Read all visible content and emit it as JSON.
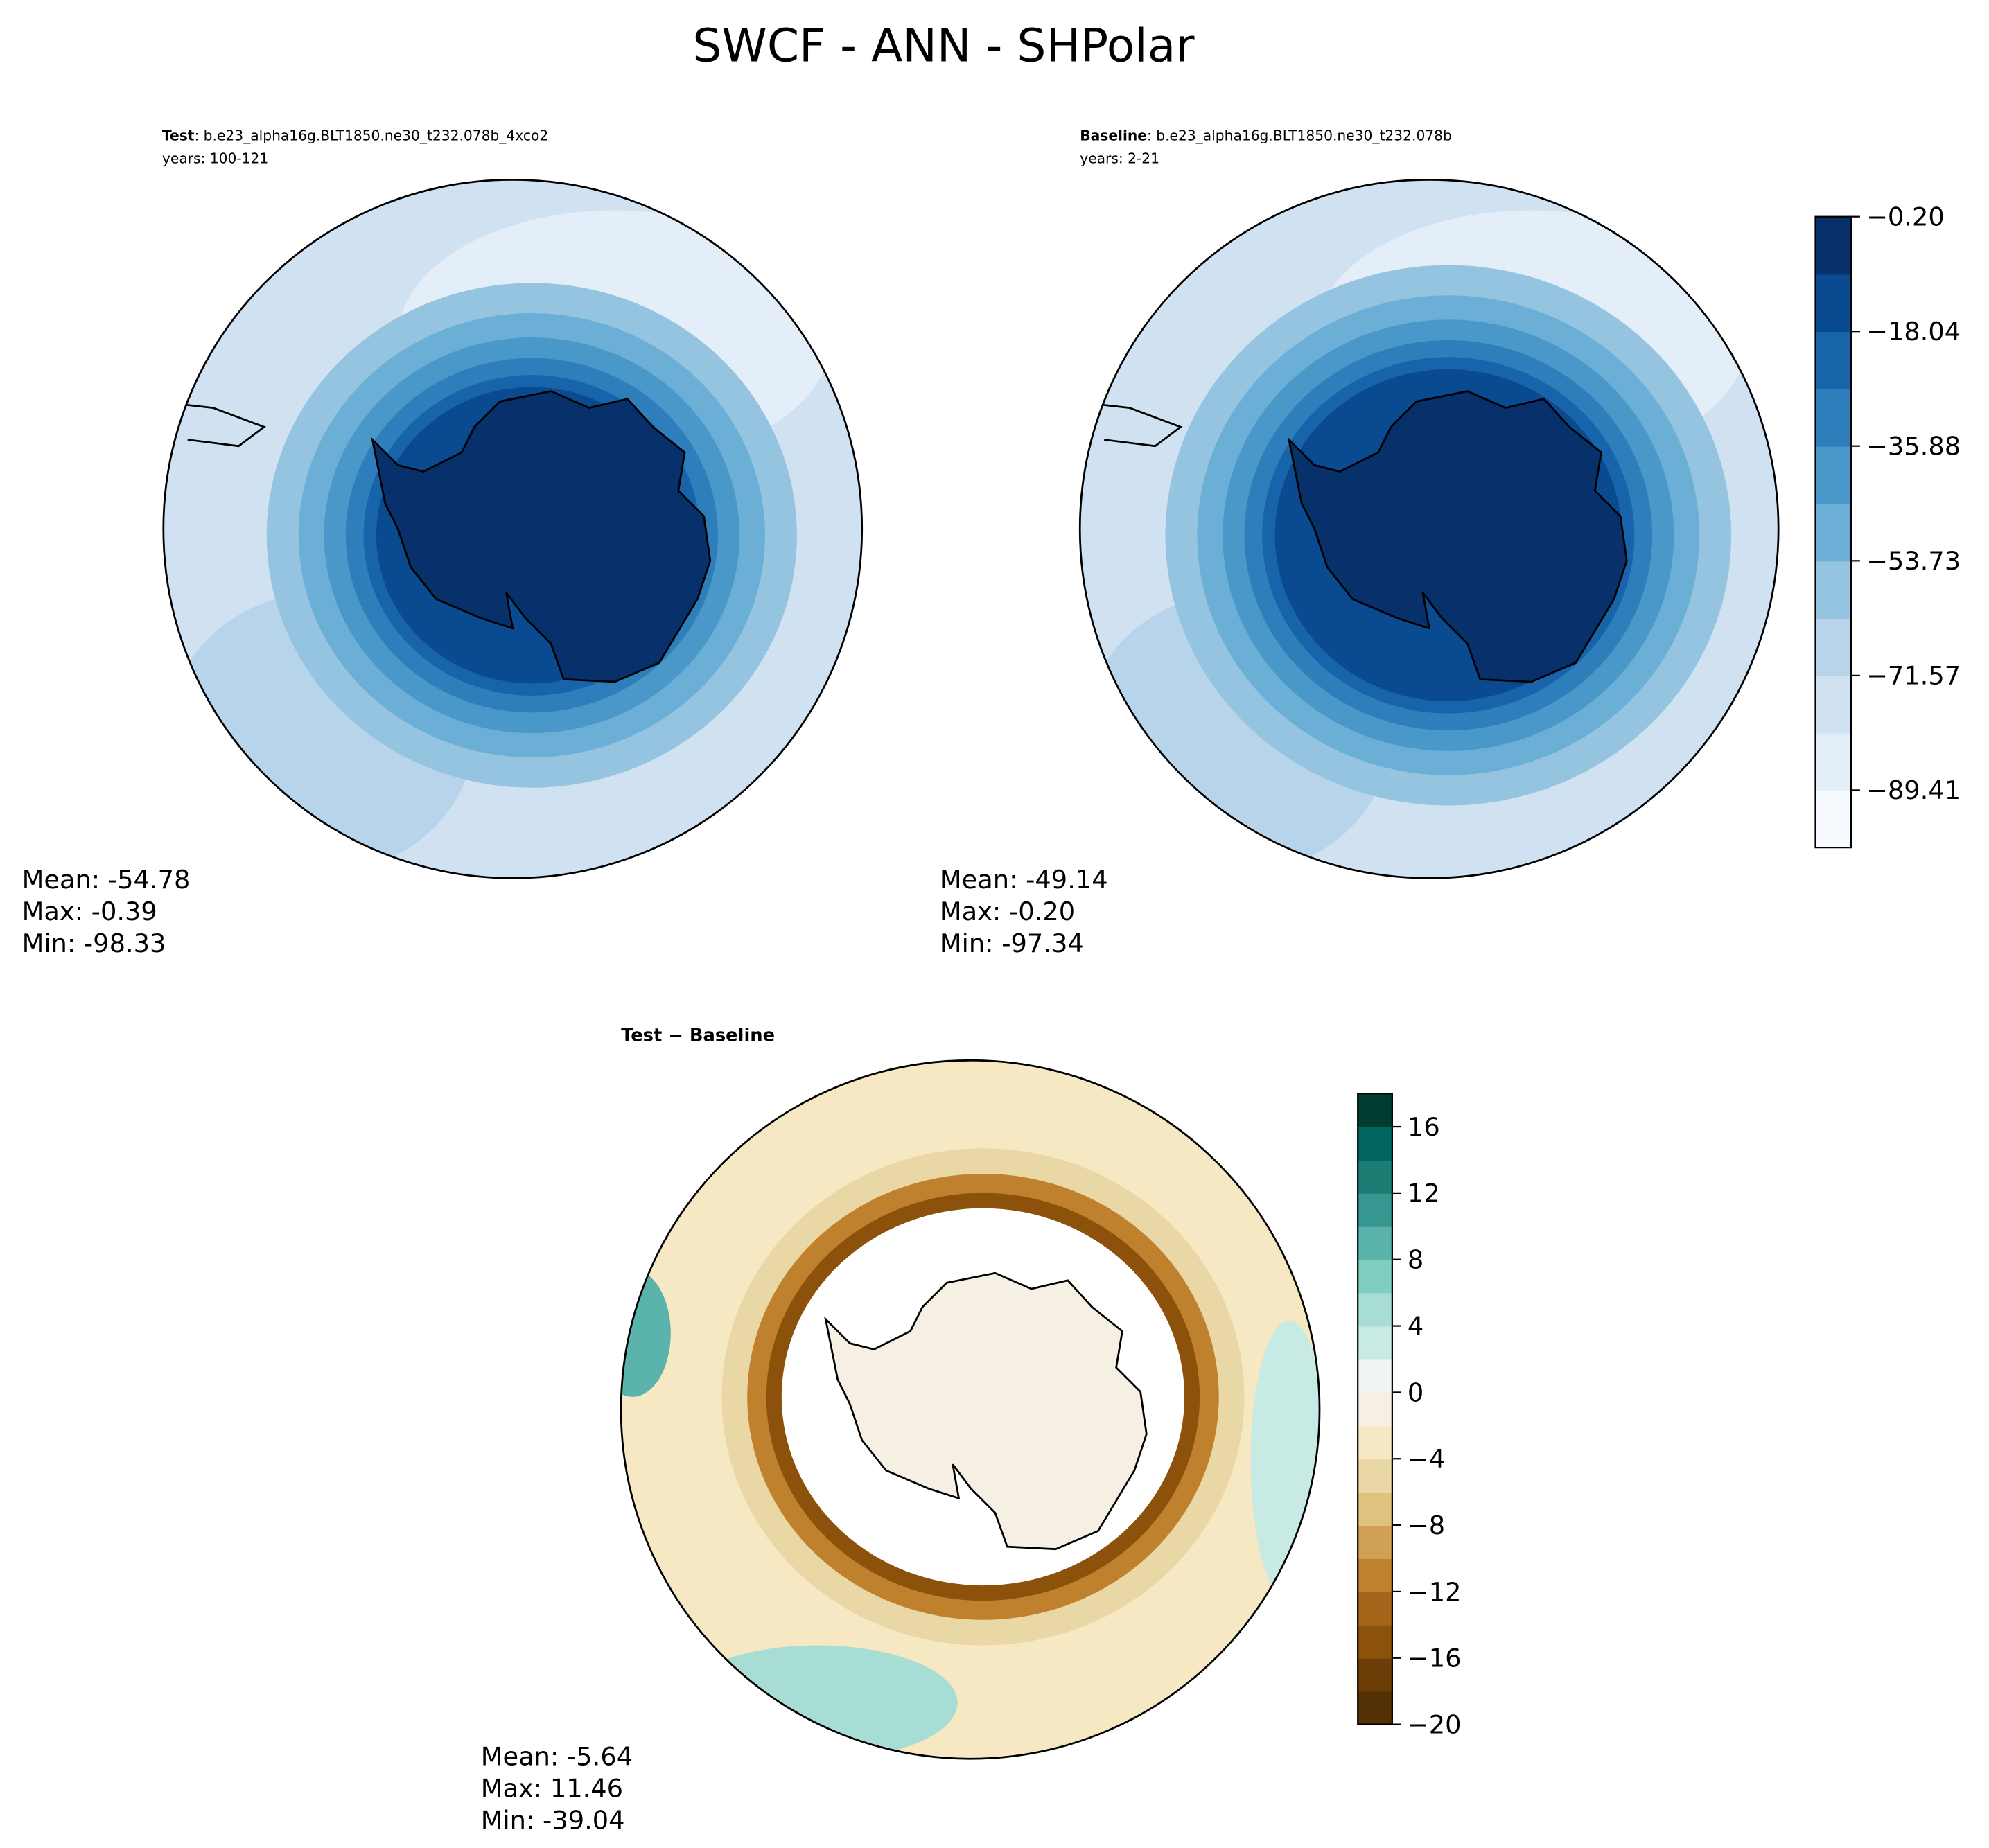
{
  "title": "SWCF - ANN - SHPolar",
  "panels": [
    {
      "label_bold": "Test",
      "label": ": b.e23_alpha16g.BLT1850.ne30_t232.078b_4xco2",
      "years": "years: 100-121",
      "stats": [
        "Mean: -54.78",
        "Max: -0.39",
        "Min: -98.33"
      ]
    },
    {
      "label_bold": "Baseline",
      "label": ": b.e23_alpha16g.BLT1850.ne30_t232.078b",
      "years": "years: 2-21",
      "stats": [
        "Mean: -49.14",
        "Max: -0.20",
        "Min: -97.34"
      ]
    },
    {
      "label_bold": "Test − Baseline",
      "stats": [
        "Mean: -5.64",
        "Max: 11.46",
        "Min: -39.04"
      ]
    }
  ],
  "colorbars": [
    {
      "lim": [
        -98.33,
        -0.2
      ],
      "ticks": [
        {
          "value": -0.2,
          "label": "−0.20"
        },
        {
          "value": -18.04,
          "label": "−18.04"
        },
        {
          "value": -35.88,
          "label": "−35.88"
        },
        {
          "value": -53.73,
          "label": "−53.73"
        },
        {
          "value": -71.57,
          "label": "−71.57"
        },
        {
          "value": -89.41,
          "label": "−89.41"
        }
      ],
      "colors": [
        "#f7fbff",
        "#e3eef9",
        "#d0e1f2",
        "#b7d4ea",
        "#94c4df",
        "#6baed6",
        "#4a98c9",
        "#2e7ebc",
        "#1764ab",
        "#0a4a90",
        "#08306b"
      ]
    },
    {
      "lim": [
        -20,
        18
      ],
      "ticks": [
        {
          "value": -20,
          "label": "−20"
        },
        {
          "value": -16,
          "label": "−16"
        },
        {
          "value": -12,
          "label": "−12"
        },
        {
          "value": -8,
          "label": "−8"
        },
        {
          "value": -4,
          "label": "−4"
        },
        0,
        4,
        8,
        12,
        16
      ],
      "colors": [
        "#543005",
        "#6d3d07",
        "#8c510a",
        "#a6661a",
        "#bf812d",
        "#d0a155",
        "#dfc27d",
        "#ead7a6",
        "#f6e8c3",
        "#f5f0e3",
        "#eef5f4",
        "#c7eae5",
        "#a7ddd4",
        "#80cdc1",
        "#5ab4ac",
        "#35978f",
        "#1b7d74",
        "#01665e",
        "#003c30"
      ]
    }
  ]
}
